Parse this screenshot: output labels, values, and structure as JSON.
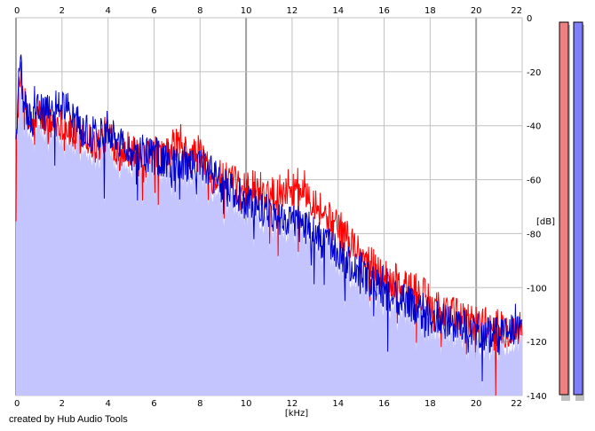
{
  "credit_text": "created by Hub Audio Tools",
  "colors": {
    "background": "#ffffff",
    "grid": "#c0c0c0",
    "grid_major": "#a0a0a0",
    "fill": "#c4c4ff",
    "series_red": "#ff0000",
    "series_blue": "#0000cc",
    "meter_red": "#f08080",
    "meter_blue": "#8080ff",
    "meter_shadow": "#c0c0c0",
    "axis_text": "#000000"
  },
  "chart_data": {
    "type": "line",
    "xlabel": "[kHz]",
    "ylabel": "[dB]",
    "xlim": [
      0,
      22
    ],
    "ylim": [
      -140,
      0
    ],
    "x_ticks": [
      "0",
      "2",
      "4",
      "6",
      "8",
      "10",
      "12",
      "14",
      "16",
      "18",
      "20",
      "22"
    ],
    "y_ticks": [
      "0",
      "-20",
      "-40",
      "-60",
      "-80",
      "-100",
      "-120",
      "-140"
    ],
    "grid": true,
    "fill_under": true,
    "series": [
      {
        "color": "#ff0000",
        "x": [
          0,
          0.1,
          0.2,
          0.3,
          0.5,
          0.8,
          1.0,
          1.5,
          2.0,
          2.5,
          3.0,
          3.5,
          4.0,
          4.5,
          5.0,
          5.5,
          6.0,
          6.5,
          7.0,
          7.5,
          8.0,
          8.5,
          9.0,
          9.5,
          10.0,
          10.5,
          11.0,
          11.5,
          12.0,
          12.5,
          13.0,
          13.5,
          14.0,
          14.5,
          15.0,
          15.5,
          16.0,
          16.5,
          17.0,
          17.5,
          18.0,
          18.5,
          19.0,
          19.5,
          20.0,
          20.5,
          21.0,
          21.5,
          22.0
        ],
        "values": [
          -55,
          -30,
          -22,
          -28,
          -38,
          -42,
          -35,
          -40,
          -38,
          -44,
          -43,
          -48,
          -42,
          -50,
          -48,
          -55,
          -50,
          -52,
          -46,
          -52,
          -50,
          -58,
          -60,
          -62,
          -63,
          -63,
          -65,
          -64,
          -62,
          -63,
          -68,
          -74,
          -78,
          -82,
          -88,
          -92,
          -96,
          -98,
          -100,
          -102,
          -105,
          -108,
          -110,
          -112,
          -113,
          -114,
          -115,
          -116,
          -115
        ]
      },
      {
        "color": "#0000cc",
        "x": [
          0,
          0.1,
          0.2,
          0.3,
          0.5,
          0.8,
          1.0,
          1.5,
          2.0,
          2.5,
          3.0,
          3.5,
          4.0,
          4.5,
          5.0,
          5.5,
          6.0,
          6.5,
          7.0,
          7.5,
          8.0,
          8.5,
          9.0,
          9.5,
          10.0,
          10.5,
          11.0,
          11.5,
          12.0,
          12.5,
          13.0,
          13.5,
          14.0,
          14.5,
          15.0,
          15.5,
          16.0,
          16.5,
          17.0,
          17.5,
          18.0,
          18.5,
          19.0,
          19.5,
          20.0,
          20.5,
          21.0,
          21.5,
          22.0
        ],
        "values": [
          -45,
          -25,
          -18,
          -30,
          -36,
          -38,
          -34,
          -36,
          -30,
          -38,
          -42,
          -44,
          -40,
          -46,
          -50,
          -50,
          -52,
          -52,
          -54,
          -55,
          -55,
          -58,
          -62,
          -65,
          -68,
          -70,
          -72,
          -74,
          -75,
          -77,
          -80,
          -84,
          -88,
          -92,
          -96,
          -98,
          -102,
          -104,
          -106,
          -108,
          -110,
          -112,
          -114,
          -115,
          -116,
          -117,
          -118,
          -117,
          -116
        ]
      }
    ]
  }
}
